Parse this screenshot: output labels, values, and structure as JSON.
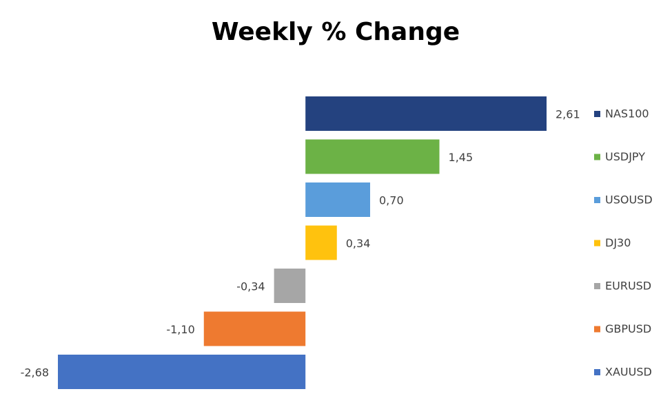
{
  "chart_data": {
    "type": "hbar",
    "title": "Weekly % Change",
    "categories": [
      "NAS100",
      "USDJPY",
      "USOUSD",
      "DJ30",
      "EURUSD",
      "GBPUSD",
      "XAUUSD"
    ],
    "values": [
      2.61,
      1.45,
      0.7,
      0.34,
      -0.34,
      -1.1,
      -2.68
    ],
    "value_labels": [
      "2,61",
      "1,45",
      "0,70",
      "0,34",
      "-0,34",
      "-1,10",
      "-2,68"
    ],
    "colors": [
      "#24427f",
      "#6cb246",
      "#5a9ddb",
      "#ffc20e",
      "#a6a6a6",
      "#ee7a30",
      "#4472c4"
    ],
    "legend": "right"
  }
}
